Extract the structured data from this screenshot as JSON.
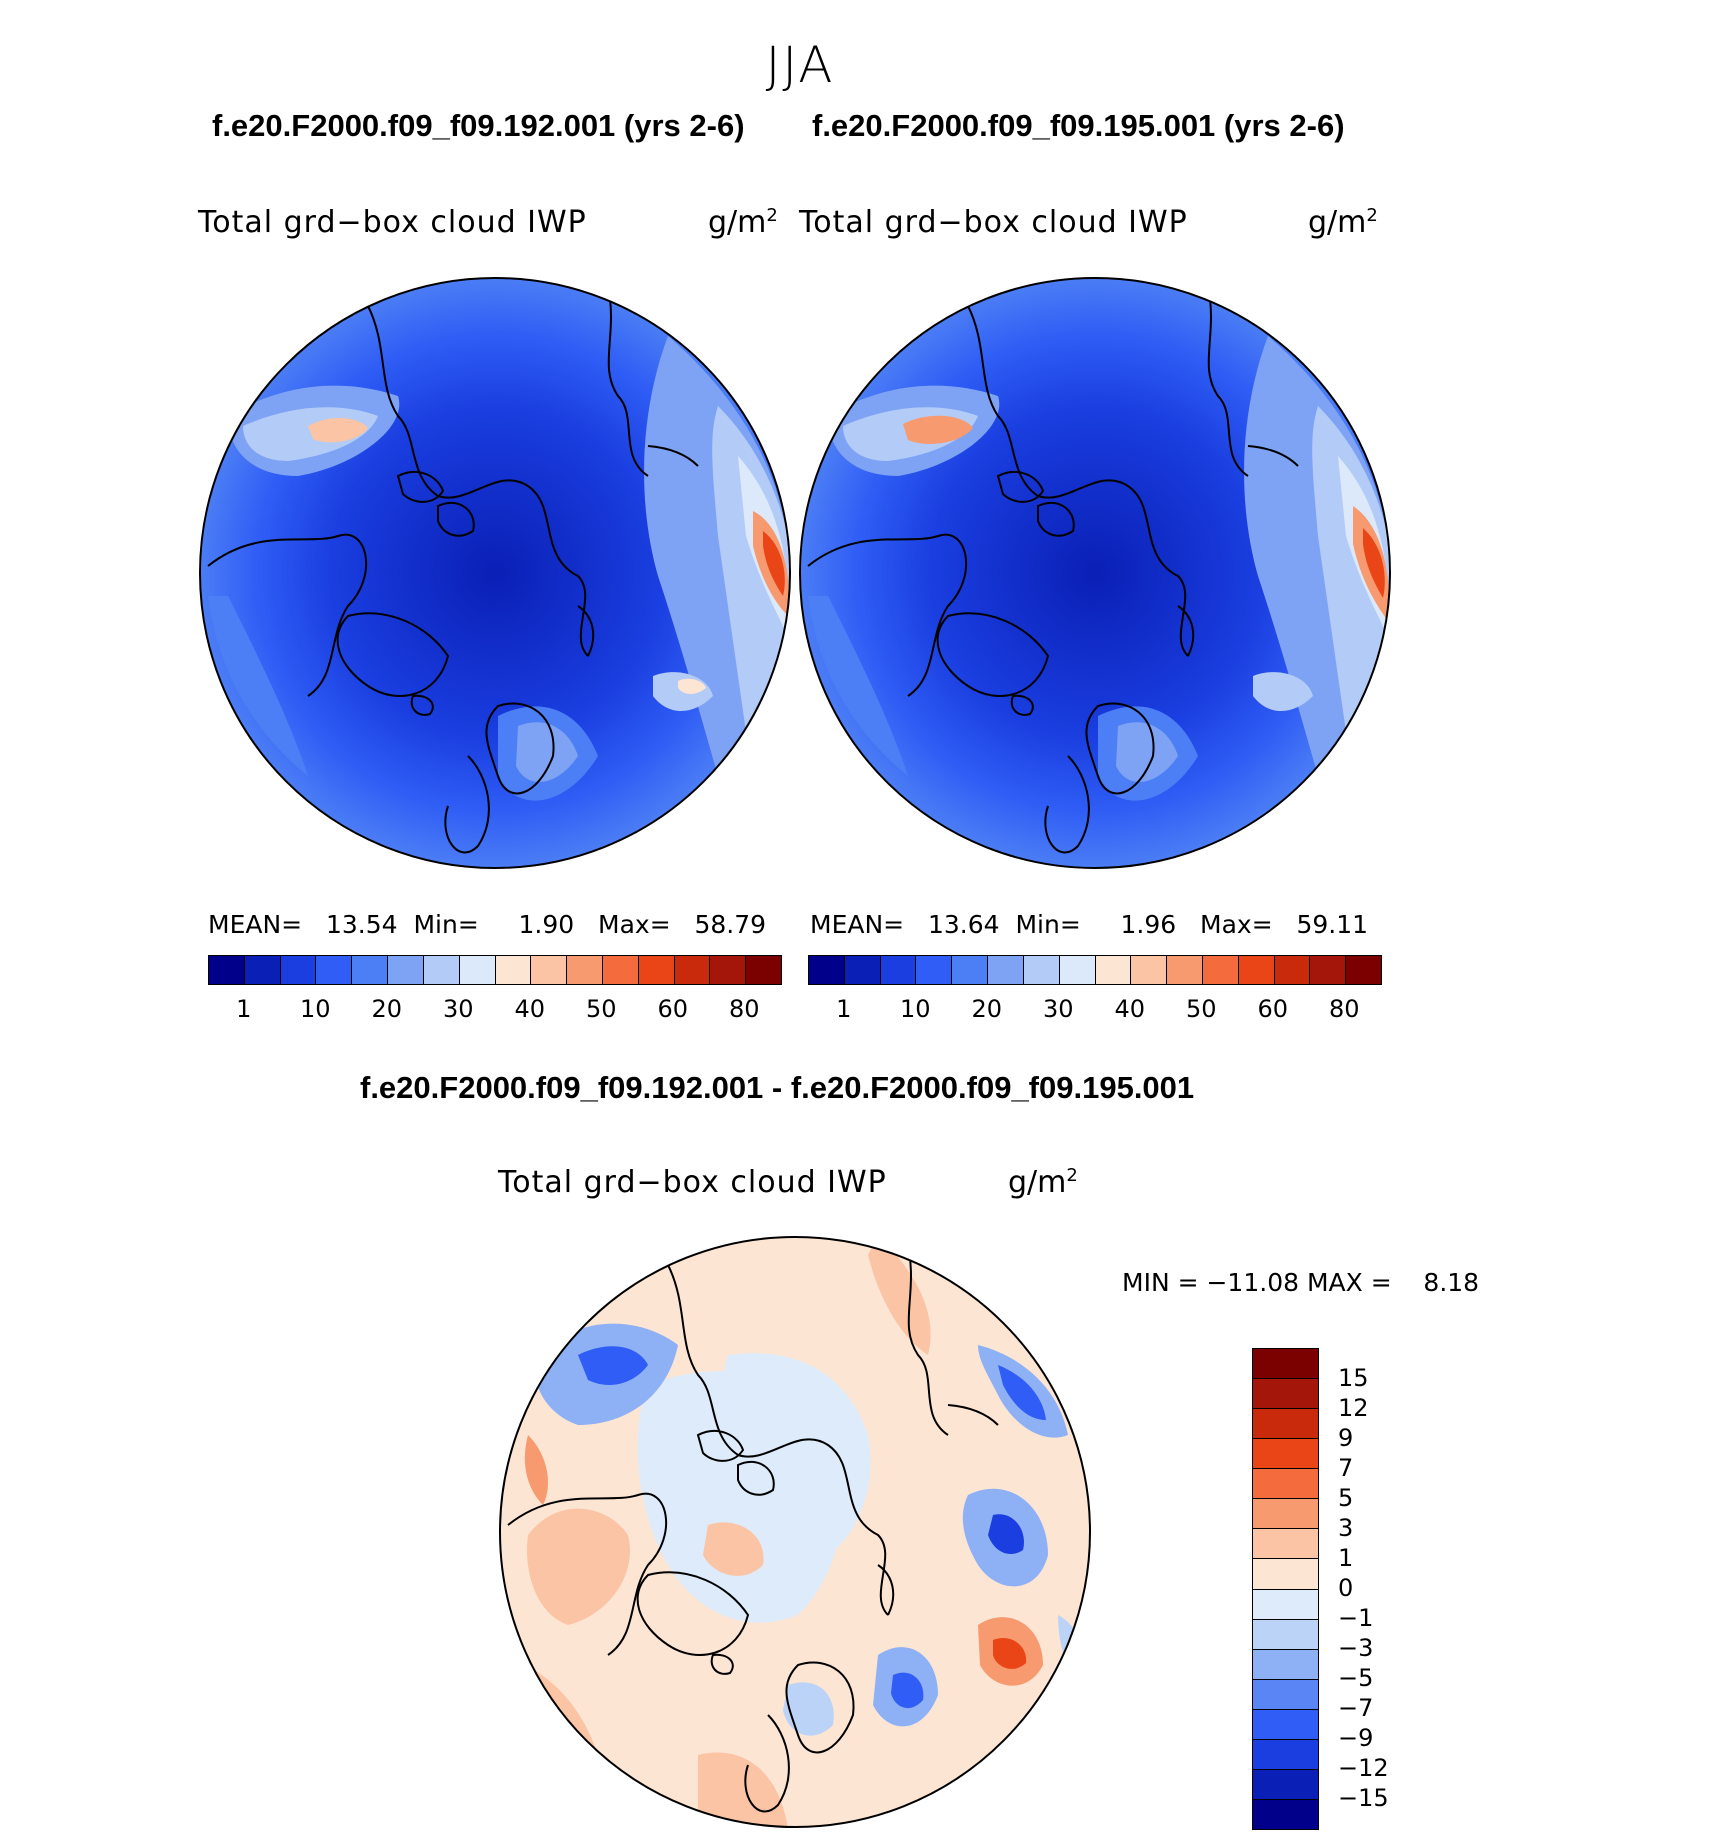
{
  "season": "JJA",
  "panel_left": {
    "case_title": "f.e20.F2000.f09_f09.192.001 (yrs 2-6)",
    "variable": "Total grd−box cloud IWP",
    "units": "g/m",
    "units_exp": "2",
    "stats": {
      "mean_label": "MEAN=",
      "mean": "13.54",
      "min_label": "Min=",
      "min": "1.90",
      "max_label": "Max=",
      "max": "58.79"
    }
  },
  "panel_right": {
    "case_title": "f.e20.F2000.f09_f09.195.001 (yrs 2-6)",
    "variable": "Total grd−box cloud IWP",
    "units": "g/m",
    "units_exp": "2",
    "stats": {
      "mean_label": "MEAN=",
      "mean": "13.64",
      "min_label": "Min=",
      "min": "1.96",
      "max_label": "Max=",
      "max": "59.11"
    }
  },
  "abs_colorbar": {
    "colors": [
      "#00008b",
      "#0a1fb5",
      "#1a3ee0",
      "#2f5df5",
      "#4c7ef5",
      "#7ea3f5",
      "#b3cbf7",
      "#dce9fa",
      "#fde5d4",
      "#fbc4a4",
      "#f79a70",
      "#f46c3e",
      "#ea4517",
      "#c92a0c",
      "#a4150a",
      "#7b0000"
    ],
    "ticks": [
      "1",
      "10",
      "20",
      "30",
      "40",
      "50",
      "60",
      "80"
    ]
  },
  "diff_panel": {
    "title": "f.e20.F2000.f09_f09.192.001 - f.e20.F2000.f09_f09.195.001",
    "variable": "Total grd−box cloud IWP",
    "units": "g/m",
    "units_exp": "2",
    "minmax": "MIN = −11.08 MAX =    8.18"
  },
  "diff_colorbar": {
    "colors": [
      "#00008b",
      "#0a1fb5",
      "#1a3ee0",
      "#2f5df5",
      "#5a86f5",
      "#8eb1f6",
      "#bcd3f8",
      "#deebfb",
      "#fde5d4",
      "#fbc4a4",
      "#f79a70",
      "#f46c3e",
      "#ea4517",
      "#c92a0c",
      "#a4150a",
      "#7b0000"
    ],
    "ticks": [
      "−15",
      "−12",
      "−9",
      "−7",
      "−5",
      "−3",
      "−1",
      "0",
      "1",
      "3",
      "5",
      "7",
      "9",
      "12",
      "15"
    ]
  }
}
